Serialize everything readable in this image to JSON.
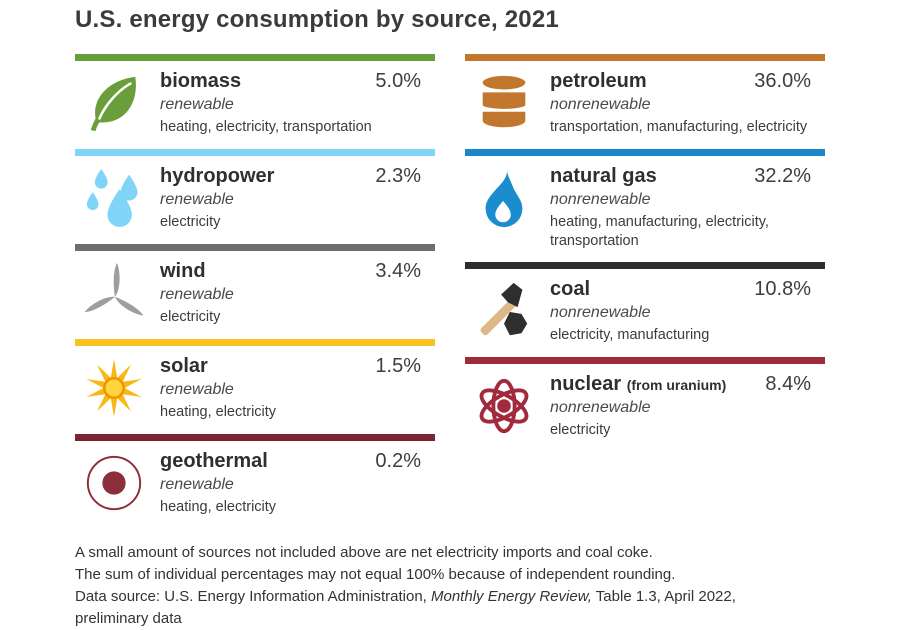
{
  "title": "U.S. energy consumption by source, 2021",
  "sources": {
    "left": [
      {
        "id": "biomass",
        "name": "biomass",
        "type": "renewable",
        "uses": "heating, electricity, transportation",
        "percentage": "5.0%",
        "bar_color": "#6a9e3b",
        "icon_color": "#6a9e3b",
        "icon": "leaf-icon"
      },
      {
        "id": "hydropower",
        "name": "hydropower",
        "type": "renewable",
        "uses": "electricity",
        "percentage": "2.3%",
        "bar_color": "#7fd4f8",
        "icon_color": "#7fd4f8",
        "icon": "water-drops-icon"
      },
      {
        "id": "wind",
        "name": "wind",
        "type": "renewable",
        "uses": "electricity",
        "percentage": "3.4%",
        "bar_color": "#6e6e6e",
        "icon_color": "#9e9e9e",
        "icon": "wind-turbine-icon"
      },
      {
        "id": "solar",
        "name": "solar",
        "type": "renewable",
        "uses": "heating, electricity",
        "percentage": "1.5%",
        "bar_color": "#f7c31d",
        "icon_color": "#f9b915",
        "icon": "sun-icon"
      },
      {
        "id": "geothermal",
        "name": "geothermal",
        "type": "renewable",
        "uses": "heating, electricity",
        "percentage": "0.2%",
        "bar_color": "#7b2433",
        "icon_color": "#8c2f3a",
        "icon": "geothermal-icon"
      }
    ],
    "right": [
      {
        "id": "petroleum",
        "name": "petroleum",
        "type": "nonrenewable",
        "uses": "transportation, manufacturing, electricity",
        "percentage": "36.0%",
        "bar_color": "#c2772e",
        "icon_color": "#c2772e",
        "icon": "oil-barrel-icon"
      },
      {
        "id": "natural-gas",
        "name": "natural gas",
        "type": "nonrenewable",
        "uses": "heating, manufacturing, electricity, transportation",
        "percentage": "32.2%",
        "bar_color": "#1b87c9",
        "icon_color": "#1b8ccd",
        "icon": "flame-icon"
      },
      {
        "id": "coal",
        "name": "coal",
        "type": "nonrenewable",
        "uses": "electricity, manufacturing",
        "percentage": "10.8%",
        "bar_color": "#2d2d2d",
        "icon_color": "#2e2e2e",
        "icon": "pickaxe-coal-icon"
      },
      {
        "id": "nuclear",
        "name": "nuclear",
        "name_note": "(from uranium)",
        "type": "nonrenewable",
        "uses": "electricity",
        "percentage": "8.4%",
        "bar_color": "#9e2b3a",
        "icon_color": "#a12b3c",
        "icon": "atom-icon"
      }
    ]
  },
  "footer": {
    "note1": "A small amount of sources not included above are net electricity imports and coal coke.",
    "note2": "The sum of individual percentages may not equal 100% because of independent rounding.",
    "source_prefix": "Data source: U.S. Energy Information Administration, ",
    "source_italic": "Monthly Energy Review,",
    "source_suffix": "  Table 1.3, April 2022,",
    "source_line2": " preliminary data"
  },
  "chart_data": {
    "type": "table",
    "title": "U.S. energy consumption by source, 2021",
    "columns": [
      "source",
      "category",
      "share_percent",
      "uses"
    ],
    "rows": [
      [
        "biomass",
        "renewable",
        5.0,
        "heating, electricity, transportation"
      ],
      [
        "hydropower",
        "renewable",
        2.3,
        "electricity"
      ],
      [
        "wind",
        "renewable",
        3.4,
        "electricity"
      ],
      [
        "solar",
        "renewable",
        1.5,
        "heating, electricity"
      ],
      [
        "geothermal",
        "renewable",
        0.2,
        "heating, electricity"
      ],
      [
        "petroleum",
        "nonrenewable",
        36.0,
        "transportation, manufacturing, electricity"
      ],
      [
        "natural gas",
        "nonrenewable",
        32.2,
        "heating, manufacturing, electricity, transportation"
      ],
      [
        "coal",
        "nonrenewable",
        10.8,
        "electricity, manufacturing"
      ],
      [
        "nuclear (from uranium)",
        "nonrenewable",
        8.4,
        "electricity"
      ]
    ],
    "units": "%",
    "legend_position": "none",
    "grid": false
  }
}
